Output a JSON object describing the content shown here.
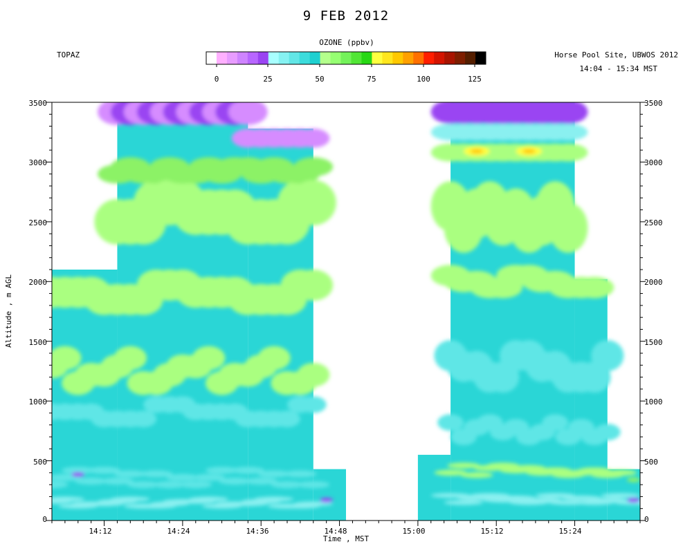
{
  "title": "9 FEB 2012",
  "left_label": "TOPAZ",
  "right_label_site": "Horse Pool Site, UBWOS 2012",
  "right_label_time": "14:04 - 15:34 MST",
  "colorbar": {
    "title": "OZONE (ppbv)",
    "ticks": [
      "0",
      "25",
      "50",
      "75",
      "100",
      "125"
    ],
    "colors": [
      "#ffffff",
      "#ffb0ff",
      "#e89cff",
      "#cf84ff",
      "#b866ff",
      "#9a44f2",
      "#a8ffff",
      "#86f2f2",
      "#62e6e6",
      "#3cdcdc",
      "#1ed0d0",
      "#b4ff8c",
      "#96ff72",
      "#74f25a",
      "#52e636",
      "#28d814",
      "#ffff40",
      "#ffe61e",
      "#ffc800",
      "#ffa000",
      "#ff7000",
      "#ff1e00",
      "#d41400",
      "#a81400",
      "#7e1e00",
      "#541e00",
      "#000000"
    ]
  },
  "chart_data": {
    "type": "heatmap",
    "title": "9 FEB 2012",
    "colorbar_label": "OZONE (ppbv)",
    "xlabel": "Time , MST",
    "ylabel": "Altitude , m AGL",
    "xlim": [
      "14:04",
      "15:34"
    ],
    "ylim": [
      0,
      3500
    ],
    "xticks": [
      "14:12",
      "14:24",
      "14:36",
      "14:48",
      "15:00",
      "15:12",
      "15:24"
    ],
    "yticks": [
      "0",
      "500",
      "1000",
      "1500",
      "2000",
      "2500",
      "3000",
      "3500"
    ],
    "zlim": [
      0,
      125
    ],
    "colorbar_ticks": [
      0,
      25,
      50,
      75,
      100,
      125
    ],
    "note_regions": [
      {
        "time_start": "14:04",
        "time_end": "14:14",
        "alt_top": 2100
      },
      {
        "time_start": "14:14",
        "time_end": "14:34",
        "alt_top": 3500
      },
      {
        "time_start": "14:34",
        "time_end": "14:44",
        "alt_top": 3280
      },
      {
        "time_start": "14:44",
        "time_end": "14:49",
        "alt_top": 430
      },
      {
        "time_start": "15:00",
        "time_end": "15:05",
        "alt_top": 550
      },
      {
        "time_start": "15:05",
        "time_end": "15:24",
        "alt_top": 3500
      },
      {
        "time_start": "15:24",
        "time_end": "15:29",
        "alt_top": 2020
      },
      {
        "time_start": "15:29",
        "time_end": "15:34",
        "alt_top": 430
      }
    ]
  }
}
